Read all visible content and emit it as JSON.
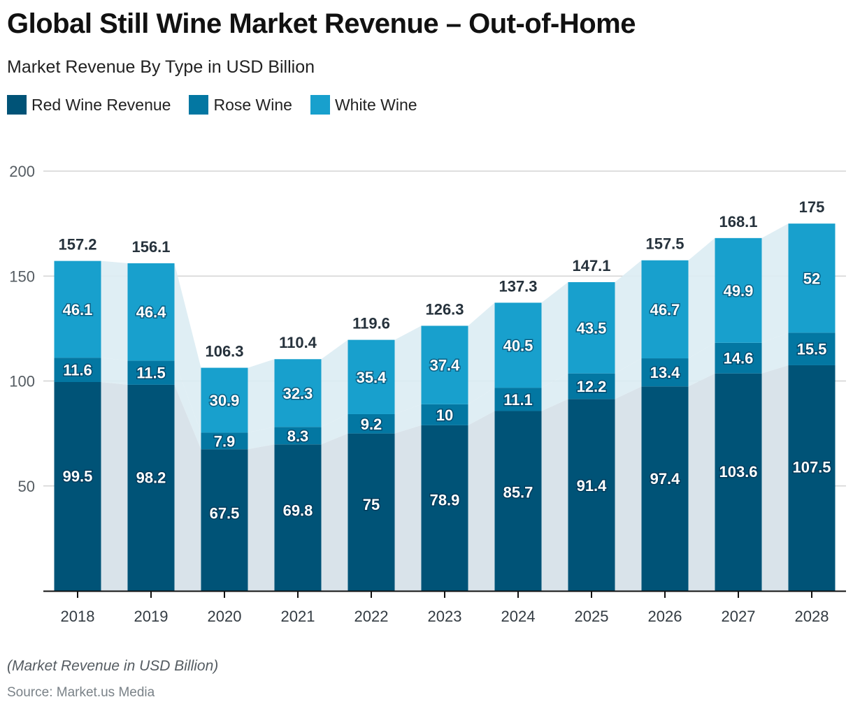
{
  "header": {
    "title": "Global Still Wine Market Revenue – Out-of-Home",
    "subtitle": "Market Revenue By Type in USD Billion"
  },
  "legend": [
    {
      "label": "Red Wine Revenue",
      "color": "#005377"
    },
    {
      "label": "Rose Wine",
      "color": "#0377a2"
    },
    {
      "label": "White Wine",
      "color": "#18a0cd"
    }
  ],
  "footer": {
    "note": "(Market Revenue in USD Billion)",
    "source": "Source: Market.us Media"
  },
  "chart_data": {
    "type": "bar",
    "stacked": true,
    "title": "Global Still Wine Market Revenue – Out-of-Home",
    "subtitle": "Market Revenue By Type in USD Billion",
    "xlabel": "",
    "ylabel": "",
    "ylim": [
      0,
      200
    ],
    "yticks": [
      50,
      100,
      150,
      200
    ],
    "grid": true,
    "legend_position": "top-left",
    "categories": [
      "2018",
      "2019",
      "2020",
      "2021",
      "2022",
      "2023",
      "2024",
      "2025",
      "2026",
      "2027",
      "2028"
    ],
    "series": [
      {
        "name": "Red Wine Revenue",
        "color": "#005377",
        "values": [
          99.5,
          98.2,
          67.5,
          69.8,
          75,
          78.9,
          85.7,
          91.4,
          97.4,
          103.6,
          107.5
        ]
      },
      {
        "name": "Rose Wine",
        "color": "#0377a2",
        "values": [
          11.6,
          11.5,
          7.9,
          8.3,
          9.2,
          10,
          11.1,
          12.2,
          13.4,
          14.6,
          15.5
        ]
      },
      {
        "name": "White Wine",
        "color": "#18a0cd",
        "values": [
          46.1,
          46.4,
          30.9,
          32.3,
          35.4,
          37.4,
          40.5,
          43.5,
          46.7,
          49.9,
          52
        ]
      }
    ],
    "totals": [
      "157.2",
      "156.1",
      "106.3",
      "110.4",
      "119.6",
      "126.3",
      "137.3",
      "147.1",
      "157.5",
      "168.1",
      "175"
    ],
    "segment_labels": [
      [
        "99.5",
        "98.2",
        "67.5",
        "69.8",
        "75",
        "78.9",
        "85.7",
        "91.4",
        "97.4",
        "103.6",
        "107.5"
      ],
      [
        "11.6",
        "11.5",
        "7.9",
        "8.3",
        "9.2",
        "10",
        "11.1",
        "12.2",
        "13.4",
        "14.6",
        "15.5"
      ],
      [
        "46.1",
        "46.4",
        "30.9",
        "32.3",
        "35.4",
        "37.4",
        "40.5",
        "43.5",
        "46.7",
        "49.9",
        "52"
      ]
    ],
    "connector_colors": [
      "#d9e3ea",
      "#dcecf3",
      "#dcecf3"
    ]
  }
}
